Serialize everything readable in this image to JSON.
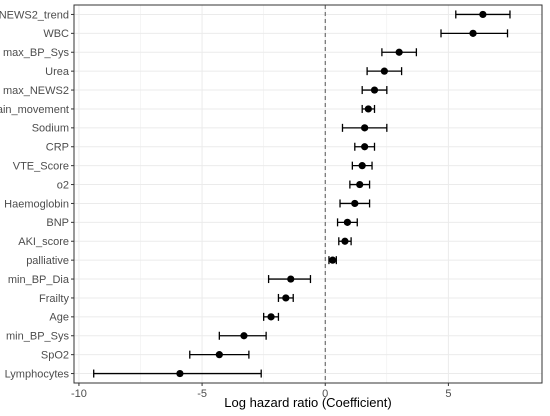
{
  "chart_data": {
    "type": "forest",
    "xlabel": "Log hazard ratio (Coefficient)",
    "ylabel": "",
    "xlim": [
      -10.2,
      8.8
    ],
    "xticks": [
      -10,
      -5,
      0,
      5
    ],
    "xtick_labels": [
      "-10",
      "-5",
      "0",
      "5"
    ],
    "reference_line": 0,
    "grid": true,
    "colors": {
      "panel_border": "#333333",
      "grid": "#ebebeb",
      "point": "#000000",
      "reference_line": "#555555"
    },
    "variables": [
      {
        "label": "NEWS2_trend",
        "estimate": 6.4,
        "lower": 5.3,
        "upper": 7.5
      },
      {
        "label": "WBC",
        "estimate": 6.0,
        "lower": 4.7,
        "upper": 7.4
      },
      {
        "label": "max_BP_Sys",
        "estimate": 3.0,
        "lower": 2.3,
        "upper": 3.7
      },
      {
        "label": "Urea",
        "estimate": 2.4,
        "lower": 1.7,
        "upper": 3.1
      },
      {
        "label": "max_NEWS2",
        "estimate": 2.0,
        "lower": 1.5,
        "upper": 2.5
      },
      {
        "label": "Pain_movement",
        "estimate": 1.75,
        "lower": 1.5,
        "upper": 2.0
      },
      {
        "label": "Sodium",
        "estimate": 1.6,
        "lower": 0.7,
        "upper": 2.5
      },
      {
        "label": "CRP",
        "estimate": 1.6,
        "lower": 1.2,
        "upper": 2.0
      },
      {
        "label": "VTE_Score",
        "estimate": 1.5,
        "lower": 1.1,
        "upper": 1.9
      },
      {
        "label": "o2",
        "estimate": 1.4,
        "lower": 1.0,
        "upper": 1.8
      },
      {
        "label": "Haemoglobin",
        "estimate": 1.2,
        "lower": 0.6,
        "upper": 1.8
      },
      {
        "label": "BNP",
        "estimate": 0.9,
        "lower": 0.5,
        "upper": 1.3
      },
      {
        "label": "AKI_score",
        "estimate": 0.8,
        "lower": 0.55,
        "upper": 1.05
      },
      {
        "label": "palliative",
        "estimate": 0.3,
        "lower": 0.15,
        "upper": 0.45
      },
      {
        "label": "min_BP_Dia",
        "estimate": -1.4,
        "lower": -2.3,
        "upper": -0.6
      },
      {
        "label": "Frailty",
        "estimate": -1.6,
        "lower": -1.9,
        "upper": -1.3
      },
      {
        "label": "Age",
        "estimate": -2.2,
        "lower": -2.5,
        "upper": -1.9
      },
      {
        "label": "min_BP_Sys",
        "estimate": -3.3,
        "lower": -4.3,
        "upper": -2.4
      },
      {
        "label": "SpO2",
        "estimate": -4.3,
        "lower": -5.5,
        "upper": -3.1
      },
      {
        "label": "Lymphocytes",
        "estimate": -5.9,
        "lower": -9.4,
        "upper": -2.6
      }
    ]
  }
}
